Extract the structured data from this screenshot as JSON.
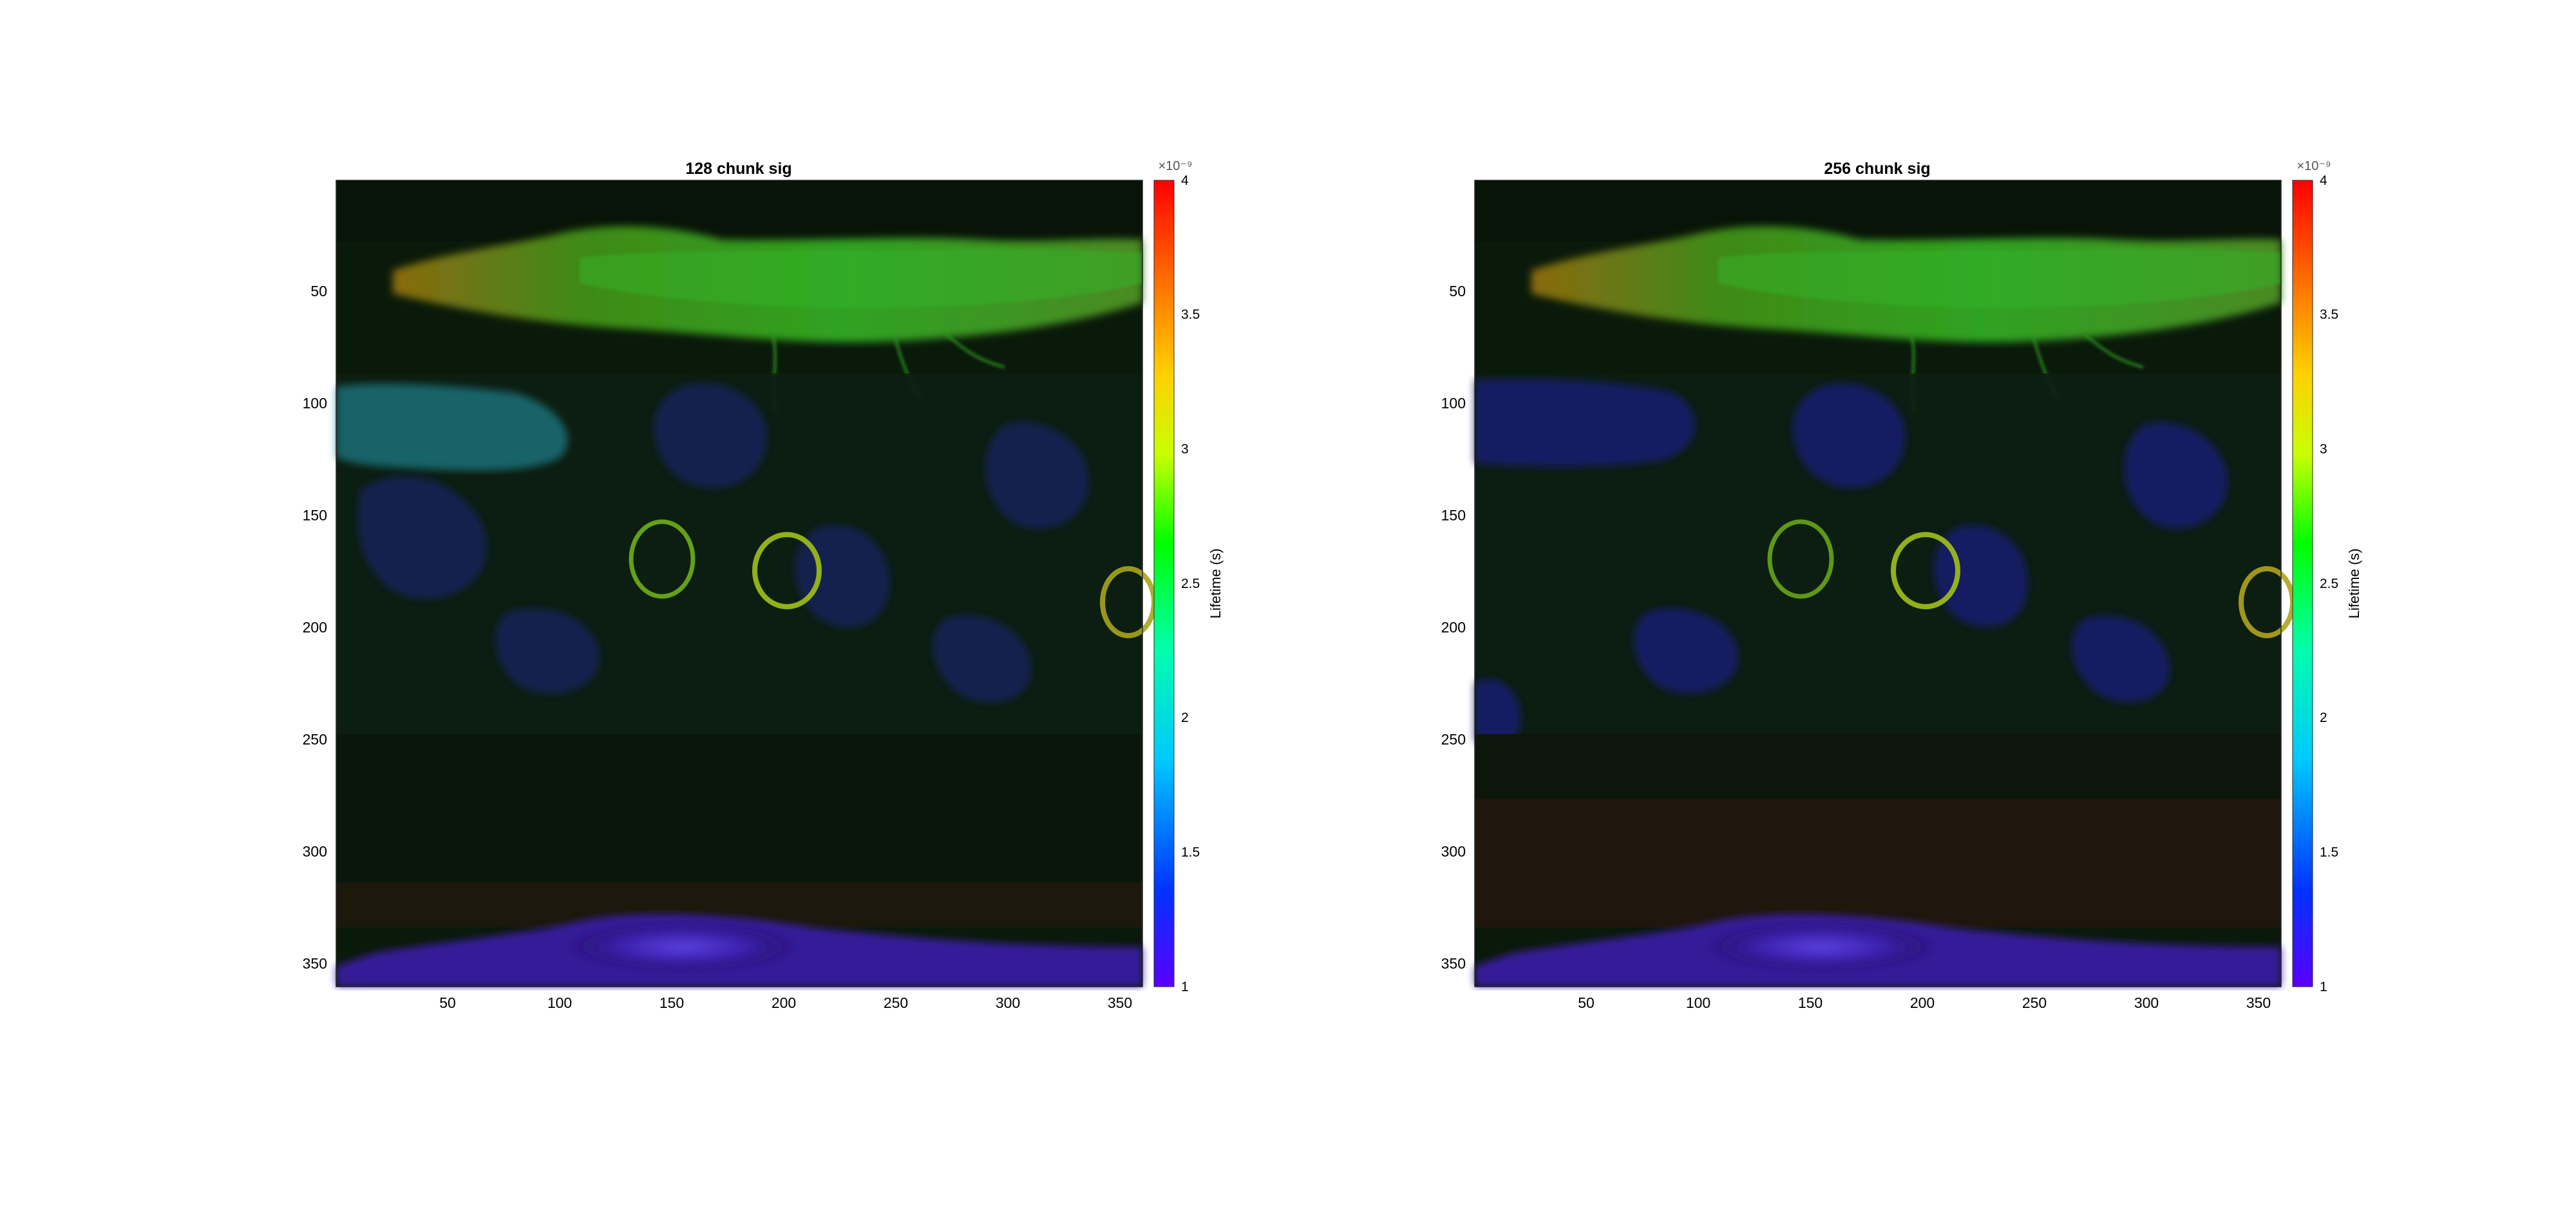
{
  "chart_data": [
    {
      "type": "heatmap",
      "title": "128 chunk sig",
      "x_ticks": [
        50,
        100,
        150,
        200,
        250,
        300,
        350
      ],
      "y_ticks": [
        50,
        100,
        150,
        200,
        250,
        300,
        350
      ],
      "xlim": [
        0.5,
        360.5
      ],
      "ylim": [
        0.5,
        360.5
      ],
      "y_direction": "reversed",
      "colorbar": {
        "label": "Lifetime (s)",
        "exponent": "×10⁻⁹",
        "range": [
          1,
          4
        ],
        "ticks": [
          1,
          1.5,
          2,
          2.5,
          3,
          3.5,
          4
        ],
        "tick_labels": [
          "1",
          "1.5",
          "2",
          "2.5",
          "3",
          "3.5",
          "4"
        ],
        "colormap": [
          "#5a00ff",
          "#0033ff",
          "#00c8ff",
          "#00ffaa",
          "#00ff00",
          "#c8ff00",
          "#ffd000",
          "#ff6a00",
          "#ff0000"
        ]
      }
    },
    {
      "type": "heatmap",
      "title": "256 chunk sig",
      "x_ticks": [
        50,
        100,
        150,
        200,
        250,
        300,
        350
      ],
      "y_ticks": [
        50,
        100,
        150,
        200,
        250,
        300,
        350
      ],
      "xlim": [
        0.5,
        360.5
      ],
      "ylim": [
        0.5,
        360.5
      ],
      "y_direction": "reversed",
      "colorbar": {
        "label": "Lifetime (s)",
        "exponent": "×10⁻⁹",
        "range": [
          1,
          4
        ],
        "ticks": [
          1,
          1.5,
          2,
          2.5,
          3,
          3.5,
          4
        ],
        "tick_labels": [
          "1",
          "1.5",
          "2",
          "2.5",
          "3",
          "3.5",
          "4"
        ],
        "colormap": [
          "#5a00ff",
          "#0033ff",
          "#00c8ff",
          "#00ffaa",
          "#00ff00",
          "#c8ff00",
          "#ffd000",
          "#ff6a00",
          "#ff0000"
        ]
      }
    }
  ]
}
